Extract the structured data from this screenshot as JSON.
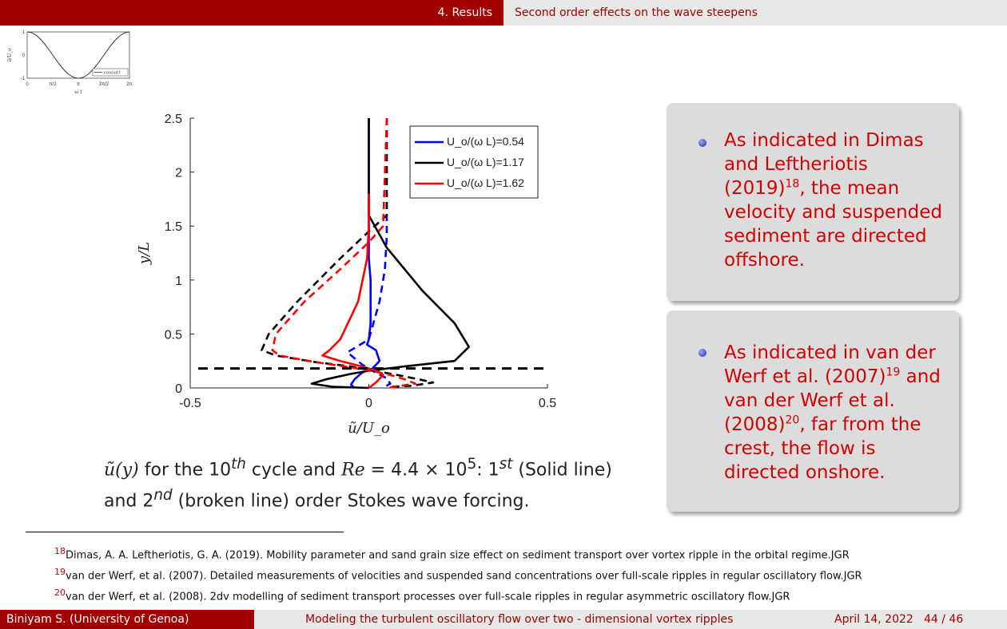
{
  "header": {
    "section": "4. Results",
    "subsection": "Second order effects on the wave steepens"
  },
  "mini_chart": {
    "chart_data": {
      "type": "line",
      "series": [
        {
          "name": "cos(ωt)",
          "function": "cos",
          "x_range": [
            0,
            6.2832
          ]
        }
      ],
      "xlabel": "ω t",
      "ylabel": "ũ/U_o",
      "x_ticks": [
        "0",
        "π/2",
        "π",
        "3π/2",
        "2π"
      ],
      "y_ticks": [
        "-1",
        "0",
        "1"
      ],
      "ylim": [
        -1,
        1
      ]
    }
  },
  "main_chart": {
    "chart_data": {
      "type": "line",
      "xlabel": "ũ/U_o",
      "ylabel": "y/L",
      "xlim": [
        -0.5,
        0.5
      ],
      "ylim": [
        0,
        2.5
      ],
      "x_ticks": [
        "-0.5",
        "0",
        "0.5"
      ],
      "y_ticks": [
        "0",
        "0.5",
        "1",
        "1.5",
        "2",
        "2.5"
      ],
      "legend_position": "top-right",
      "legend": [
        "U_o/(ω L)=0.54",
        "U_o/(ω L)=1.17",
        "U_o/(ω L)=1.62"
      ],
      "reference_line_y": 0.18,
      "series": [
        {
          "name": "U_o/(ω L)=0.54",
          "order": "1st",
          "color": "#0000ff",
          "dash": false,
          "points": [
            [
              0,
              2.5
            ],
            [
              0,
              1.2
            ],
            [
              0.005,
              1.0
            ],
            [
              0.005,
              0.6
            ],
            [
              0.0,
              0.45
            ],
            [
              -0.005,
              0.4
            ],
            [
              0.02,
              0.35
            ],
            [
              0.03,
              0.25
            ],
            [
              0.01,
              0.18
            ],
            [
              -0.02,
              0.14
            ],
            [
              -0.04,
              0.08
            ],
            [
              -0.05,
              0.03
            ],
            [
              -0.04,
              0.0
            ]
          ]
        },
        {
          "name": "U_o/(ω L)=0.54",
          "order": "2nd",
          "color": "#0000ff",
          "dash": true,
          "points": [
            [
              0.05,
              2.5
            ],
            [
              0.05,
              1.4
            ],
            [
              0.045,
              1.1
            ],
            [
              0.03,
              0.8
            ],
            [
              0.0,
              0.45
            ],
            [
              -0.06,
              0.33
            ],
            [
              -0.02,
              0.22
            ],
            [
              0.02,
              0.14
            ],
            [
              0.05,
              0.09
            ],
            [
              0.06,
              0.04
            ],
            [
              0.04,
              0.0
            ]
          ]
        },
        {
          "name": "U_o/(ω L)=1.17",
          "order": "1st",
          "color": "#000000",
          "dash": false,
          "points": [
            [
              0,
              2.5
            ],
            [
              0,
              1.6
            ],
            [
              0.05,
              1.3
            ],
            [
              0.15,
              0.9
            ],
            [
              0.24,
              0.6
            ],
            [
              0.28,
              0.38
            ],
            [
              0.24,
              0.25
            ],
            [
              0.1,
              0.2
            ],
            [
              0.0,
              0.16
            ],
            [
              -0.05,
              0.13
            ],
            [
              -0.12,
              0.08
            ],
            [
              -0.16,
              0.04
            ],
            [
              -0.1,
              0.01
            ],
            [
              0.0,
              0.0
            ]
          ]
        },
        {
          "name": "U_o/(ω L)=1.17",
          "order": "2nd",
          "color": "#000000",
          "dash": true,
          "points": [
            [
              0.05,
              2.5
            ],
            [
              0.05,
              1.6
            ],
            [
              0.0,
              1.45
            ],
            [
              -0.08,
              1.2
            ],
            [
              -0.2,
              0.8
            ],
            [
              -0.28,
              0.5
            ],
            [
              -0.3,
              0.35
            ],
            [
              -0.26,
              0.3
            ],
            [
              -0.15,
              0.24
            ],
            [
              -0.05,
              0.2
            ],
            [
              0.03,
              0.15
            ],
            [
              0.08,
              0.12
            ],
            [
              0.14,
              0.08
            ],
            [
              0.18,
              0.05
            ],
            [
              0.12,
              0.02
            ],
            [
              0.06,
              0.01
            ]
          ]
        },
        {
          "name": "U_o/(ω L)=1.62",
          "order": "1st",
          "color": "#ff0000",
          "dash": false,
          "points": [
            [
              0,
              1.8
            ],
            [
              0,
              1.5
            ],
            [
              -0.005,
              1.2
            ],
            [
              -0.03,
              0.8
            ],
            [
              -0.08,
              0.45
            ],
            [
              -0.11,
              0.35
            ],
            [
              -0.13,
              0.3
            ],
            [
              -0.08,
              0.25
            ],
            [
              -0.02,
              0.2
            ],
            [
              0.02,
              0.16
            ],
            [
              0.04,
              0.12
            ],
            [
              0.02,
              0.05
            ],
            [
              0.0,
              0.0
            ]
          ]
        },
        {
          "name": "U_o/(ω L)=1.62",
          "order": "2nd",
          "color": "#ff0000",
          "dash": true,
          "points": [
            [
              0.05,
              2.5
            ],
            [
              0.04,
              1.5
            ],
            [
              0.0,
              1.35
            ],
            [
              -0.08,
              1.1
            ],
            [
              -0.18,
              0.8
            ],
            [
              -0.26,
              0.5
            ],
            [
              -0.27,
              0.35
            ],
            [
              -0.25,
              0.3
            ],
            [
              -0.15,
              0.24
            ],
            [
              -0.05,
              0.19
            ],
            [
              0.02,
              0.15
            ],
            [
              0.06,
              0.12
            ],
            [
              0.1,
              0.08
            ],
            [
              0.13,
              0.04
            ],
            [
              0.09,
              0.02
            ],
            [
              0.05,
              0.0
            ]
          ]
        }
      ]
    }
  },
  "caption": {
    "ufunc": "ũ(y)",
    "t1": " for the 10",
    "sup1": "th",
    "t2": " cycle and ",
    "re": "Re",
    "t3": " = 4.4 × 10",
    "sup2": "5",
    "t4": ":  1",
    "sup3": "st",
    "t5": " (Solid line) and 2",
    "sup4": "nd",
    "t6": " (broken line) order Stokes wave forcing."
  },
  "block1": {
    "t1": "As indicated in Dimas and Leftheriotis (2019)",
    "ref": "18",
    "t2": ", the mean velocity and suspended sediment are directed offshore."
  },
  "block2": {
    "t1": "As indicated in van der Werf et al. (2007)",
    "ref1": "19",
    "t2": " and van der Werf et al. (2008)",
    "ref2": "20",
    "t3": ", far from the crest, the flow is directed onshore."
  },
  "footnotes": [
    {
      "num": "18",
      "text": "Dimas, A. A.  Leftheriotis, G. A. (2019). Mobility parameter and sand grain size effect on sediment transport over vortex ripple in the orbital regime.JGR"
    },
    {
      "num": "19",
      "text": "van der Werf, et al. (2007). Detailed measurements of velocities and suspended sand concentrations over full-scale ripples in regular oscillatory flow.JGR"
    },
    {
      "num": "20",
      "text": "van der Werf, et al. (2008). 2dv modelling of sediment transport processes over full-scale ripples in regular asymmetric oscillatory flow.JGR"
    }
  ],
  "footer": {
    "author": "Biniyam S.  (University of Genoa)",
    "title": "Modeling the turbulent oscillatory flow over two - dimensional vortex ripples",
    "date": "April 14, 2022",
    "page": "44 / 46"
  },
  "colors": {
    "accent": "#a00000",
    "alert": "#d00000",
    "block_bg": "#dcdcdc"
  }
}
